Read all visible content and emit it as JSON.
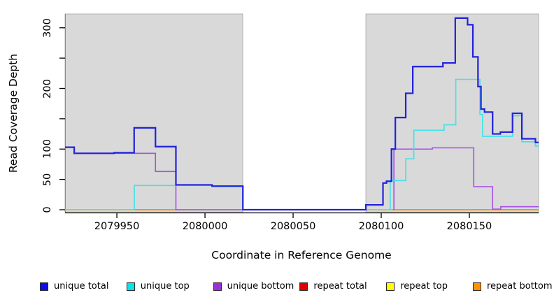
{
  "chart_data": {
    "type": "line",
    "subtype": "step-coverage",
    "title": "",
    "xlabel": "Coordinate in Reference Genome",
    "ylabel": "Read Coverage Depth",
    "x_range": [
      2079920.6,
      2080189.3
    ],
    "y_range": [
      0,
      317
    ],
    "grid": false,
    "legend_position": "bottom",
    "x_ticks": [
      {
        "value": 2079950,
        "label": "2079950"
      },
      {
        "value": 2080000,
        "label": "2080000"
      },
      {
        "value": 2080050,
        "label": "2080050"
      },
      {
        "value": 2080100,
        "label": "2080100"
      },
      {
        "value": 2080150,
        "label": "2080150"
      }
    ],
    "y_ticks": [
      {
        "value": 0,
        "label": "0"
      },
      {
        "value": 50,
        "label": "50"
      },
      {
        "value": 100,
        "label": "100"
      },
      {
        "value": 150,
        "label": ""
      },
      {
        "value": 200,
        "label": "200"
      },
      {
        "value": 250,
        "label": ""
      },
      {
        "value": 300,
        "label": "300"
      }
    ],
    "shaded_regions": [
      {
        "name": "left-gray-region",
        "from": 2079920.6,
        "to": 2080021.4,
        "color": "#d9d9d9",
        "border": "#b2b2b2"
      },
      {
        "name": "right-gray-region",
        "from": 2080091.3,
        "to": 2080189.3,
        "color": "#d9d9d9",
        "border": "#b2b2b2"
      }
    ],
    "series": [
      {
        "name": "repeat total",
        "color": "#dd0000",
        "width": 1.4,
        "segments": [
          [
            [
              2079920.6,
              0
            ],
            [
              2080189.3,
              0
            ]
          ]
        ]
      },
      {
        "name": "repeat top",
        "color": "#f5f500",
        "width": 1.4,
        "segments": [
          [
            [
              2079920.6,
              0
            ],
            [
              2080189.3,
              0
            ]
          ]
        ]
      },
      {
        "name": "baseline-zero",
        "color": "#8fd48f",
        "width": 1.5,
        "segments": [
          [
            [
              2079920.6,
              0
            ],
            [
              2080189.3,
              0
            ]
          ]
        ]
      },
      {
        "name": "repeat bottom",
        "color": "#ff9400",
        "width": 2.0,
        "segments": [
          [
            [
              2079959.6,
              0
            ],
            [
              2079983.8,
              0
            ]
          ],
          [
            [
              2080106.0,
              0
            ],
            [
              2080189.3,
              0
            ]
          ]
        ]
      },
      {
        "name": "unique bottom",
        "color": "#a84fe3",
        "width": 1.6,
        "segments": [
          [
            [
              2079920.6,
              103
            ],
            [
              2079925.8,
              93
            ],
            [
              2079971.9,
              63
            ],
            [
              2079983.5,
              0
            ],
            [
              2080021.8,
              0
            ]
          ],
          [
            [
              2080106.9,
              0
            ],
            [
              2080107.2,
              100
            ],
            [
              2080129.0,
              102
            ],
            [
              2080152.5,
              38
            ],
            [
              2080163.2,
              1
            ],
            [
              2080167.8,
              5
            ],
            [
              2080189.3,
              5
            ]
          ]
        ]
      },
      {
        "name": "unique top",
        "color": "#3fe2e8",
        "width": 1.6,
        "segments": [
          [
            [
              2079959.7,
              0
            ],
            [
              2079959.9,
              40
            ],
            [
              2080004.0,
              38
            ],
            [
              2080021.5,
              0
            ]
          ],
          [
            [
              2080104.9,
              0
            ],
            [
              2080105.1,
              48
            ],
            [
              2080113.9,
              84
            ],
            [
              2080118.5,
              131
            ],
            [
              2080135.7,
              140
            ],
            [
              2080142.3,
              215
            ],
            [
              2080156.0,
              157
            ],
            [
              2080157.5,
              121
            ],
            [
              2080174.5,
              155
            ],
            [
              2080179.8,
              112
            ],
            [
              2080187.5,
              105
            ],
            [
              2080189.3,
              105
            ]
          ]
        ]
      },
      {
        "name": "unique total",
        "color": "#2121dc",
        "width": 2.2,
        "segments": [
          [
            [
              2079920.6,
              103
            ],
            [
              2079925.8,
              93
            ],
            [
              2079948.4,
              94
            ],
            [
              2079959.8,
              135
            ],
            [
              2079971.9,
              104
            ],
            [
              2079983.5,
              41
            ],
            [
              2080004.0,
              39
            ],
            [
              2080021.5,
              0
            ],
            [
              2080091.3,
              8
            ],
            [
              2080101.0,
              44
            ],
            [
              2080103.0,
              47
            ],
            [
              2080105.8,
              100
            ],
            [
              2080108.0,
              152
            ],
            [
              2080113.9,
              192
            ],
            [
              2080117.9,
              236
            ],
            [
              2080135.0,
              242
            ],
            [
              2080142.0,
              316
            ],
            [
              2080149.0,
              305
            ],
            [
              2080152.0,
              252
            ],
            [
              2080154.9,
              203
            ],
            [
              2080156.6,
              166
            ],
            [
              2080158.6,
              161
            ],
            [
              2080163.2,
              125
            ],
            [
              2080167.6,
              128
            ],
            [
              2080174.5,
              159
            ],
            [
              2080179.8,
              117
            ],
            [
              2080187.5,
              111
            ],
            [
              2080189.3,
              111
            ]
          ]
        ]
      }
    ],
    "legend": [
      {
        "label": "unique total",
        "color": "#0d0dee"
      },
      {
        "label": "unique top",
        "color": "#00e5ee"
      },
      {
        "label": "unique bottom",
        "color": "#9c2fd6"
      },
      {
        "label": "repeat total",
        "color": "#dd0000"
      },
      {
        "label": "repeat top",
        "color": "#ffff00"
      },
      {
        "label": "repeat bottom",
        "color": "#ff9400"
      }
    ]
  }
}
